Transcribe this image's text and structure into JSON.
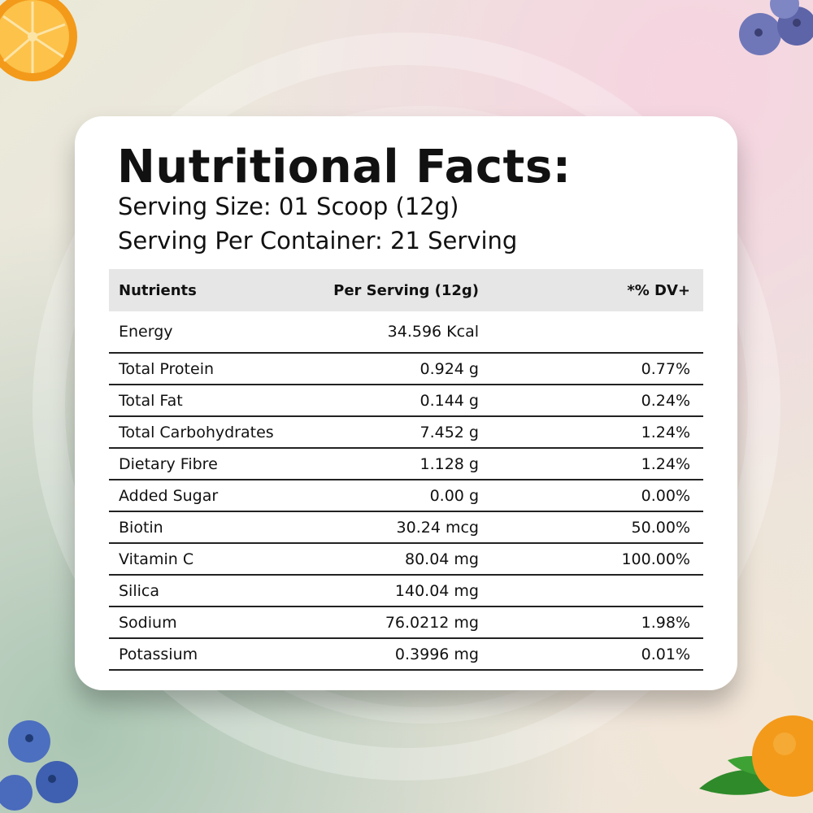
{
  "panel": {
    "title": "Nutritional Facts:",
    "serving_size": "Serving Size: 01 Scoop (12g)",
    "servings_per_container": "Serving Per Container: 21 Serving"
  },
  "table": {
    "headers": [
      "Nutrients",
      "Per Serving  (12g)",
      "*% DV+"
    ],
    "rows": [
      {
        "nutrient": "Energy",
        "per_serving": "34.596 Kcal",
        "dv": ""
      },
      {
        "nutrient": "Total Protein",
        "per_serving": "0.924 g",
        "dv": "0.77%"
      },
      {
        "nutrient": "Total Fat",
        "per_serving": "0.144 g",
        "dv": "0.24%"
      },
      {
        "nutrient": "Total Carbohydrates",
        "per_serving": "7.452 g",
        "dv": "1.24%"
      },
      {
        "nutrient": "Dietary Fibre",
        "per_serving": "1.128 g",
        "dv": "1.24%"
      },
      {
        "nutrient": "Added Sugar",
        "per_serving": "0.00 g",
        "dv": "0.00%"
      },
      {
        "nutrient": "Biotin",
        "per_serving": "30.24 mcg",
        "dv": "50.00%"
      },
      {
        "nutrient": "Vitamin C",
        "per_serving": "80.04 mg",
        "dv": "100.00%"
      },
      {
        "nutrient": "Silica",
        "per_serving": "140.04 mg",
        "dv": ""
      },
      {
        "nutrient": "Sodium",
        "per_serving": "76.0212 mg",
        "dv": "1.98%"
      },
      {
        "nutrient": "Potassium",
        "per_serving": "0.3996 mg",
        "dv": "0.01%"
      }
    ]
  },
  "decorations": [
    "orange-slice",
    "blueberries",
    "blueberries",
    "orange-with-leaves"
  ],
  "colors": {
    "card": "#ffffff",
    "header_row": "#e6e6e6",
    "text": "#111111"
  }
}
